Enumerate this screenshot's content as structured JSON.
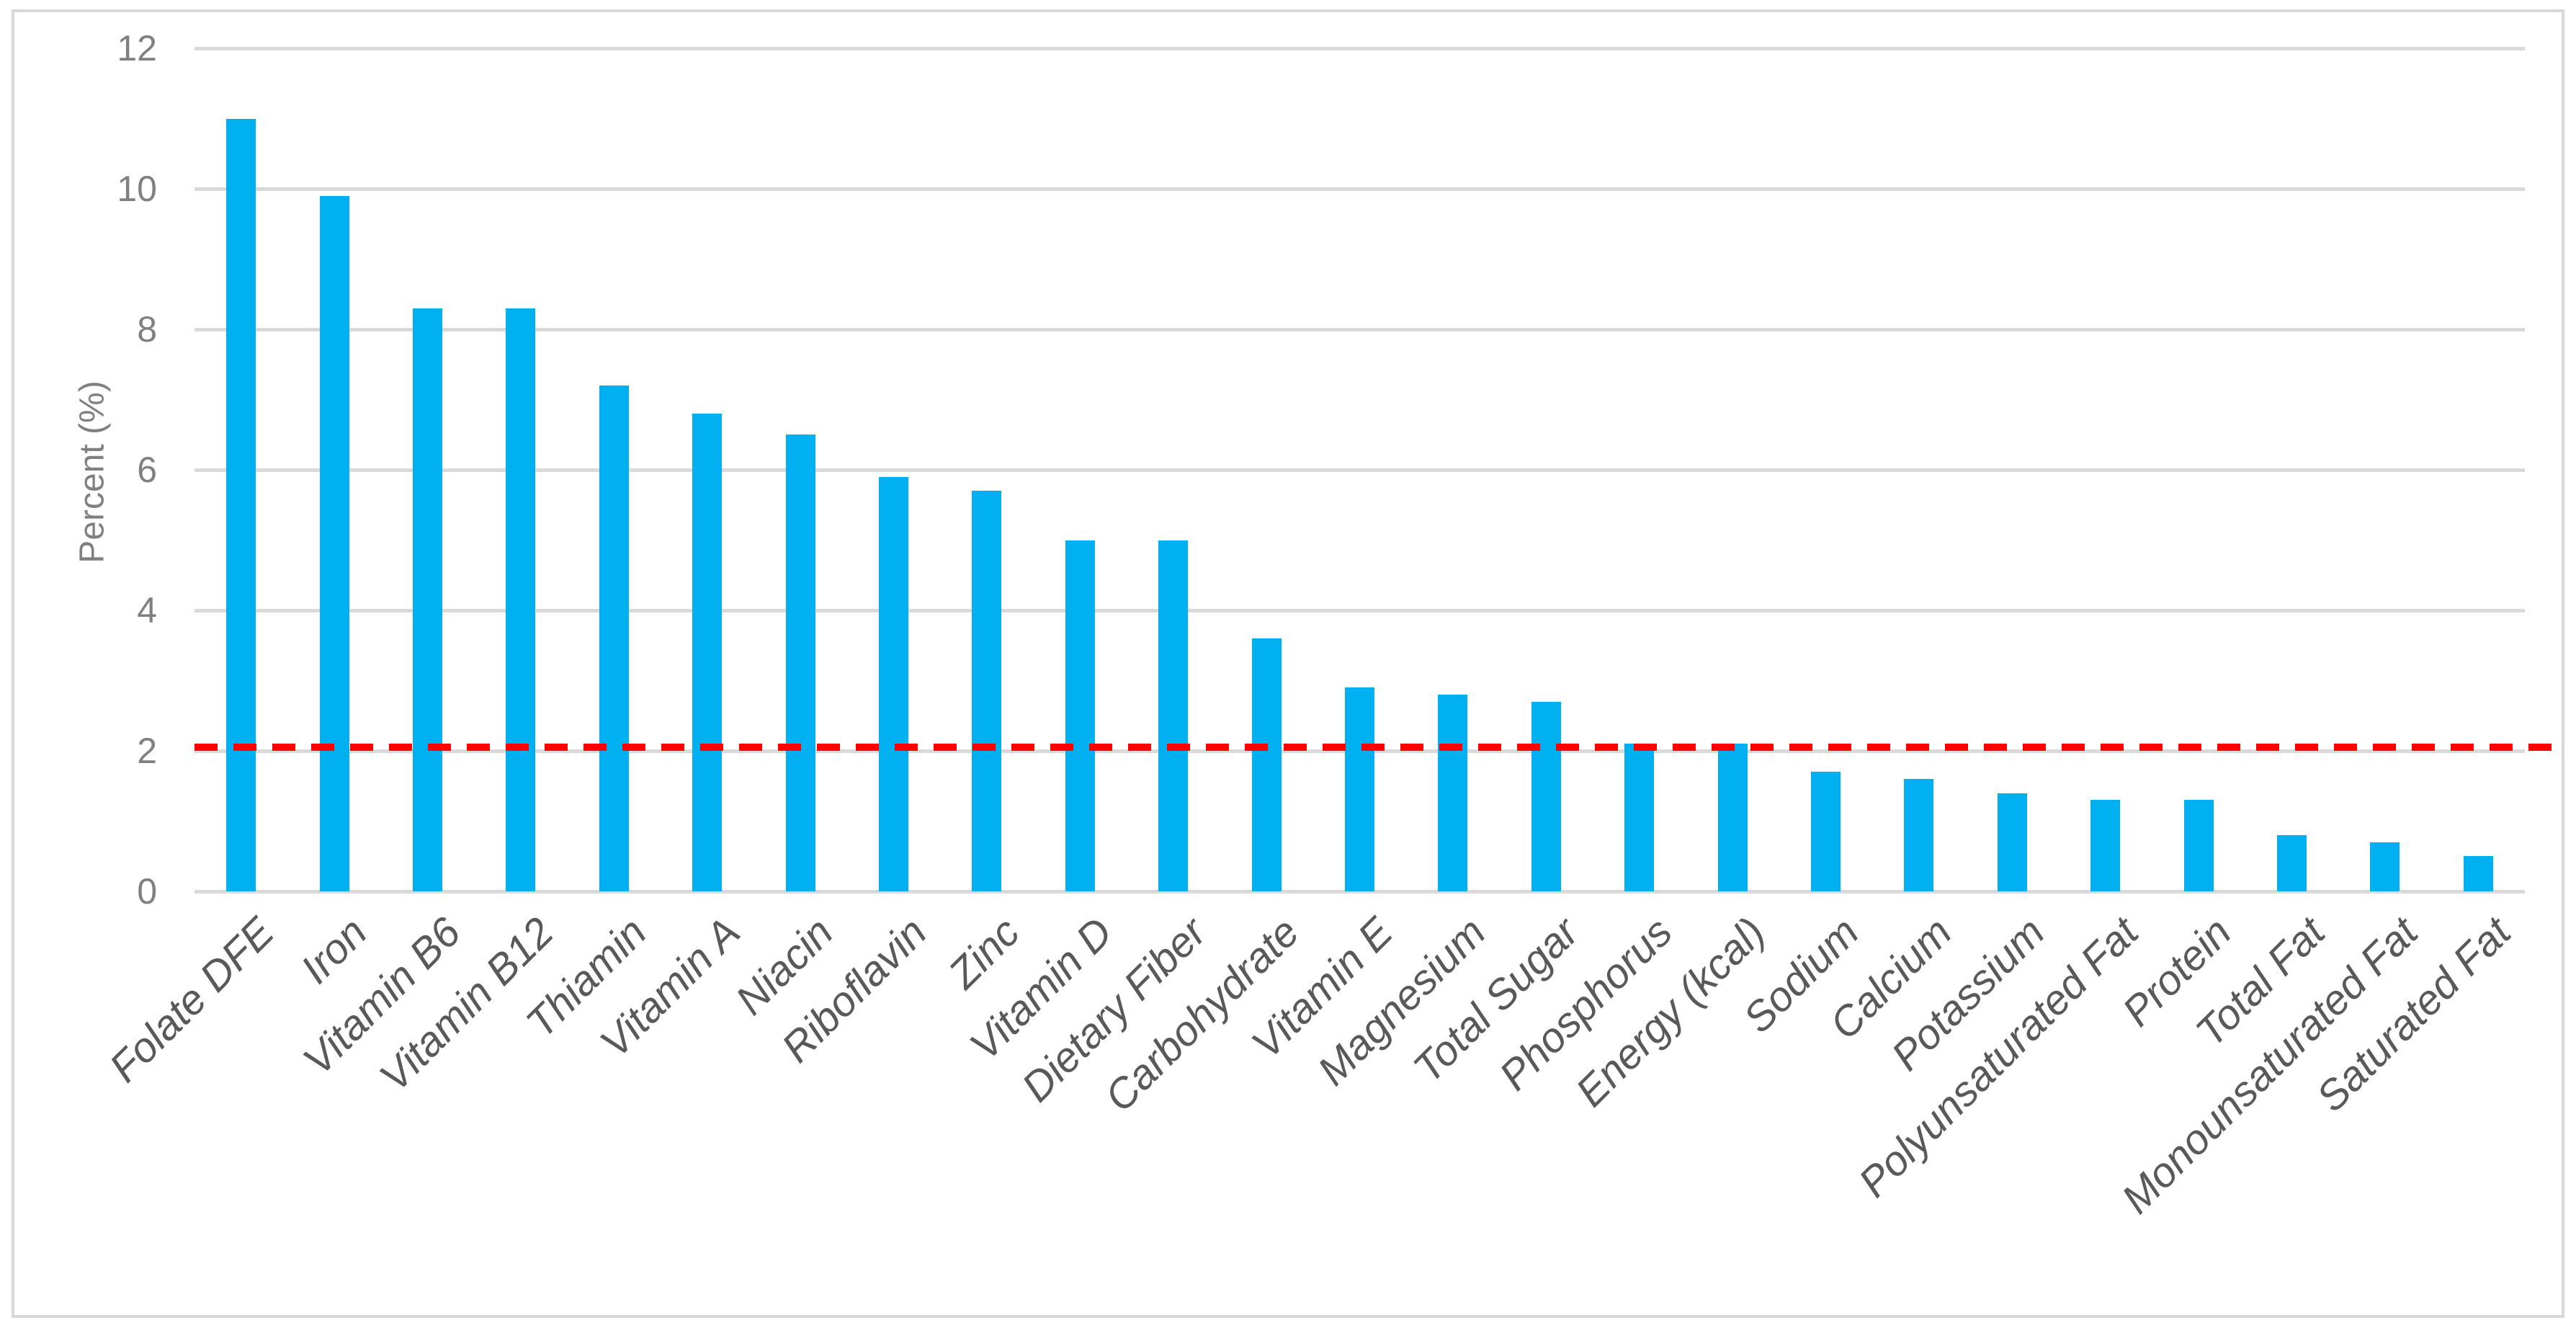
{
  "chart_data": {
    "type": "bar",
    "title": "",
    "xlabel": "",
    "ylabel": "Percent (%)",
    "ylim": [
      0,
      12
    ],
    "yticks": [
      0,
      2,
      4,
      6,
      8,
      10,
      12
    ],
    "grid": true,
    "legend": "none",
    "bar_color": "#00B0F0",
    "gridline_color": "#D9D9D9",
    "tick_label_color": "#808080",
    "category_label_color": "#595959",
    "categories": [
      "Folate DFE",
      "Iron",
      "Vitamin B6",
      "Vitamin B12",
      "Thiamin",
      "Vitamin A",
      "Niacin",
      "Riboflavin",
      "Zinc",
      "Vitamin D",
      "Dietary Fiber",
      "Carbohydrate",
      "Vitamin E",
      "Magnesium",
      "Total Sugar",
      "Phosphorus",
      "Energy (kcal)",
      "Sodium",
      "Calcium",
      "Potassium",
      "Polyunsaturated Fat",
      "Protein",
      "Total Fat",
      "Monounsaturated Fat",
      "Saturated Fat"
    ],
    "values": [
      11.0,
      9.9,
      8.3,
      8.3,
      7.2,
      6.8,
      6.5,
      5.9,
      5.7,
      5.0,
      5.0,
      3.6,
      2.9,
      2.8,
      2.7,
      2.1,
      2.1,
      1.7,
      1.6,
      1.4,
      1.3,
      1.3,
      0.8,
      0.7,
      0.5
    ],
    "reference_line": {
      "value": 2.05,
      "color": "#FF0000",
      "style": "dashed"
    }
  }
}
